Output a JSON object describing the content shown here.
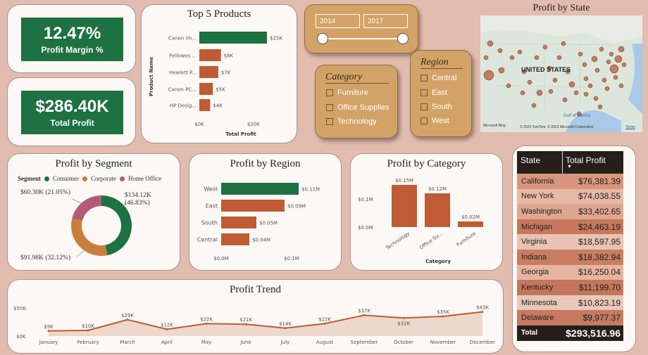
{
  "kpis": {
    "margin_value": "12.47%",
    "margin_label": "Profit Margin %",
    "profit_value": "$286.40K",
    "profit_label": "Total Profit"
  },
  "colors": {
    "green": "#1e7141",
    "rust": "#bf5b35",
    "tan": "#c97f3b",
    "mauve": "#b45a78",
    "background": "#e2bcae",
    "slicer": "#d3a266"
  },
  "year_slicer": {
    "start": "2014",
    "end": "2017"
  },
  "category_slicer": {
    "title": "Category",
    "options": [
      "Furniture",
      "Office Supplies",
      "Technology"
    ]
  },
  "region_slicer": {
    "title": "Region",
    "options": [
      "Central",
      "East",
      "South",
      "West"
    ]
  },
  "map": {
    "title": "Profit by State",
    "country_label": "UNITED STATES",
    "gulf_label": "Gulf of Mexico",
    "attribution": "© 2023 TomTom, © 2023 Microsoft Corporation",
    "logo": "Microsoft Bing",
    "terms": "Terms"
  },
  "top_products": {
    "title": "Top 5 Products",
    "ylabel": "Product Name",
    "xlabel": "Total Profit",
    "categories": [
      "Canon im...",
      "Fellowes ...",
      "Hewlett P...",
      "Canon PC...",
      "HP Desig..."
    ],
    "labels": [
      "$25K",
      "$8K",
      "$7K",
      "$5K",
      "$4K"
    ],
    "values": [
      25,
      8,
      7,
      5,
      4
    ],
    "ticks": [
      "$0K",
      "$20K"
    ]
  },
  "segment": {
    "title": "Profit by Segment",
    "legend_title": "Segment",
    "legend": [
      "Consumer",
      "Corporate",
      "Home Office"
    ],
    "values": [
      134.12,
      91.98,
      60.3
    ],
    "labels": [
      "$134.12K",
      "$91.98K (32.12%)",
      "$60.30K (21.05%)"
    ],
    "pct_label": "(46.83%)"
  },
  "region_chart": {
    "title": "Profit by Region",
    "categories": [
      "West",
      "East",
      "South",
      "Central"
    ],
    "values": [
      0.11,
      0.09,
      0.05,
      0.04
    ],
    "labels": [
      "$0.11M",
      "$0.09M",
      "$0.05M",
      "$0.04M"
    ],
    "ticks": [
      "$0.0M",
      "$0.1M"
    ]
  },
  "category_chart": {
    "title": "Profit by Category",
    "categories": [
      "Technology",
      "Office Su...",
      "Furniture"
    ],
    "values": [
      0.15,
      0.12,
      0.02
    ],
    "labels": [
      "$0.15M",
      "$0.12M",
      "$0.02M"
    ],
    "ticks": [
      "$0.1M",
      "$0.0M"
    ],
    "xlabel": "Category"
  },
  "trend": {
    "title": "Profit Trend",
    "months": [
      "January",
      "February",
      "March",
      "April",
      "May",
      "June",
      "July",
      "August",
      "September",
      "October",
      "November",
      "December"
    ],
    "values": [
      9,
      10,
      29,
      12,
      22,
      21,
      14,
      22,
      37,
      32,
      35,
      43
    ],
    "labels": [
      "$9K",
      "$10K",
      "$29K",
      "$12K",
      "$22K",
      "$21K",
      "$14K",
      "$22K",
      "$37K",
      "$32K",
      "$35K",
      "$43K"
    ],
    "ticks": [
      "$50K",
      "$0K"
    ]
  },
  "state_table": {
    "header_state": "State",
    "header_profit": "Total Profit",
    "rows": [
      {
        "state": "California",
        "profit": "$76,381.39"
      },
      {
        "state": "New York",
        "profit": "$74,038.55"
      },
      {
        "state": "Washington",
        "profit": "$33,402.65"
      },
      {
        "state": "Michigan",
        "profit": "$24,463.19"
      },
      {
        "state": "Virginia",
        "profit": "$18,597.95"
      },
      {
        "state": "Indiana",
        "profit": "$18,382.94"
      },
      {
        "state": "Georgia",
        "profit": "$16,250.04"
      },
      {
        "state": "Kentucky",
        "profit": "$11,199.70"
      },
      {
        "state": "Minnesota",
        "profit": "$10,823.19"
      },
      {
        "state": "Delaware",
        "profit": "$9,977.37"
      }
    ],
    "total_label": "Total",
    "total_value": "$293,516.96"
  },
  "chart_data": [
    {
      "type": "bar",
      "title": "Top 5 Products",
      "categories": [
        "Canon im...",
        "Fellowes ...",
        "Hewlett P...",
        "Canon PC...",
        "HP Desig..."
      ],
      "values": [
        25,
        8,
        7,
        5,
        4
      ],
      "xlabel": "Total Profit",
      "ylabel": "Product Name"
    },
    {
      "type": "pie",
      "title": "Profit by Segment",
      "categories": [
        "Consumer",
        "Corporate",
        "Home Office"
      ],
      "values": [
        134.12,
        91.98,
        60.3
      ]
    },
    {
      "type": "bar",
      "title": "Profit by Region",
      "categories": [
        "West",
        "East",
        "South",
        "Central"
      ],
      "values": [
        0.11,
        0.09,
        0.05,
        0.04
      ]
    },
    {
      "type": "bar",
      "title": "Profit by Category",
      "categories": [
        "Technology",
        "Office Su...",
        "Furniture"
      ],
      "values": [
        0.15,
        0.12,
        0.02
      ],
      "xlabel": "Category"
    },
    {
      "type": "area",
      "title": "Profit Trend",
      "x": [
        "January",
        "February",
        "March",
        "April",
        "May",
        "June",
        "July",
        "August",
        "September",
        "October",
        "November",
        "December"
      ],
      "values": [
        9,
        10,
        29,
        12,
        22,
        21,
        14,
        22,
        37,
        32,
        35,
        43
      ],
      "ylim": [
        0,
        50
      ]
    }
  ]
}
